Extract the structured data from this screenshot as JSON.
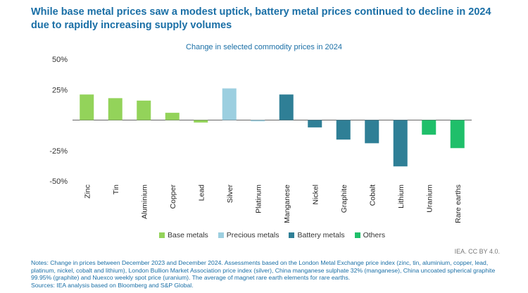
{
  "title": "While base metal prices saw a modest uptick, battery metal prices continued to decline in 2024 due to rapidly increasing supply volumes",
  "subtitle": "Change in selected commodity prices in 2024",
  "chart_data": {
    "type": "bar",
    "categories": [
      "Zinc",
      "Tin",
      "Aluminium",
      "Copper",
      "Lead",
      "Silver",
      "Platinum",
      "Manganese",
      "Nickel",
      "Graphite",
      "Cobalt",
      "Lithium",
      "Uranium",
      "Rare earths"
    ],
    "values": [
      21,
      18,
      16,
      6,
      -2,
      26,
      -1,
      21,
      -6,
      -16,
      -19,
      -38,
      -12,
      -23
    ],
    "groups": [
      "Base metals",
      "Base metals",
      "Base metals",
      "Base metals",
      "Base metals",
      "Precious metals",
      "Precious metals",
      "Battery metals",
      "Battery metals",
      "Battery metals",
      "Battery metals",
      "Battery metals",
      "Others",
      "Others"
    ],
    "ylim": [
      -50,
      50
    ],
    "yticks": [
      50,
      25,
      0,
      -25,
      -50
    ],
    "ytick_labels": [
      "50%",
      "25%",
      "",
      "-25%",
      "-50%"
    ],
    "grid": false,
    "legend_position": "bottom",
    "legend": [
      {
        "label": "Base metals",
        "color": "#93d35a"
      },
      {
        "label": "Precious metals",
        "color": "#9ccfe0"
      },
      {
        "label": "Battery metals",
        "color": "#2f7f96"
      },
      {
        "label": "Others",
        "color": "#1fbf6a"
      }
    ]
  },
  "credit": "IEA. CC BY 4.0.",
  "notes": "Notes: Change in prices between December 2023 and December 2024. Assessments based on the London Metal Exchange price index (zinc, tin, aluminium, copper, lead, platinum, nickel, cobalt and lithium), London Bullion Market Association price index (silver), China manganese sulphate 32% (manganese), China uncoated spherical graphite 99.95% (graphite) and Nuexco weekly spot price (uranium). The average of magnet rare earth elements for rare earths.",
  "sources": "Sources: IEA analysis based on Bloomberg and S&P Global."
}
